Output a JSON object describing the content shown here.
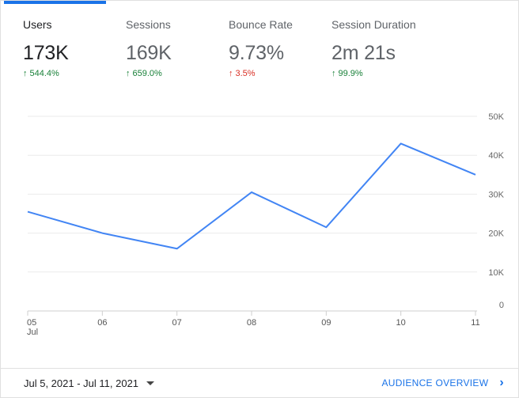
{
  "metrics": [
    {
      "label": "Users",
      "value": "173K",
      "change": "544.4%",
      "direction": "up",
      "change_color": "#188038"
    },
    {
      "label": "Sessions",
      "value": "169K",
      "change": "659.0%",
      "direction": "up",
      "change_color": "#188038"
    },
    {
      "label": "Bounce Rate",
      "value": "9.73%",
      "change": "3.5%",
      "direction": "up",
      "change_color": "#d93025"
    },
    {
      "label": "Session Duration",
      "value": "2m 21s",
      "change": "99.9%",
      "direction": "up",
      "change_color": "#188038"
    }
  ],
  "chart_data": {
    "type": "line",
    "categories": [
      "05",
      "06",
      "07",
      "08",
      "09",
      "10",
      "11"
    ],
    "x_sublabel": "Jul",
    "series": [
      {
        "values": [
          25500,
          20000,
          16000,
          30500,
          21500,
          43000,
          35000
        ],
        "color": "#4285f4"
      }
    ],
    "ylim": [
      0,
      50000
    ],
    "y_ticks": [
      0,
      10000,
      20000,
      30000,
      40000,
      50000
    ],
    "y_tick_labels": [
      "0",
      "10K",
      "20K",
      "30K",
      "40K",
      "50K"
    ],
    "y_axis_side": "right",
    "grid": true
  },
  "footer": {
    "date_range": "Jul 5, 2021 - Jul 11, 2021",
    "link_label": "AUDIENCE OVERVIEW"
  },
  "icons": {
    "up_arrow": "↑",
    "dropdown": "caret-down",
    "chevron": "›"
  }
}
